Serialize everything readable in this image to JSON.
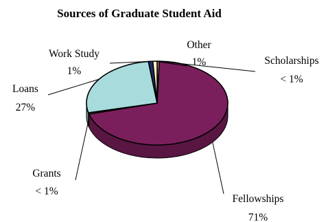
{
  "chart_data": {
    "type": "pie",
    "title": "Sources of Graduate Student Aid",
    "categories": [
      "Fellowships",
      "Grants",
      "Loans",
      "Work Study",
      "Other",
      "Scholarships"
    ],
    "values": [
      71,
      0.5,
      27,
      1,
      1,
      0.5
    ],
    "value_labels": [
      "71%",
      "< 1%",
      "27%",
      "1%",
      "1%",
      "< 1%"
    ],
    "colors": {
      "Fellowships": "#7b1f5c",
      "Grants": "#fbf4d6",
      "Loans": "#a8dcdc",
      "Work Study": "#1f2a6b",
      "Other": "#fcefc4",
      "Scholarships": "#e88c8c"
    },
    "style": "3d",
    "legend": "none"
  }
}
